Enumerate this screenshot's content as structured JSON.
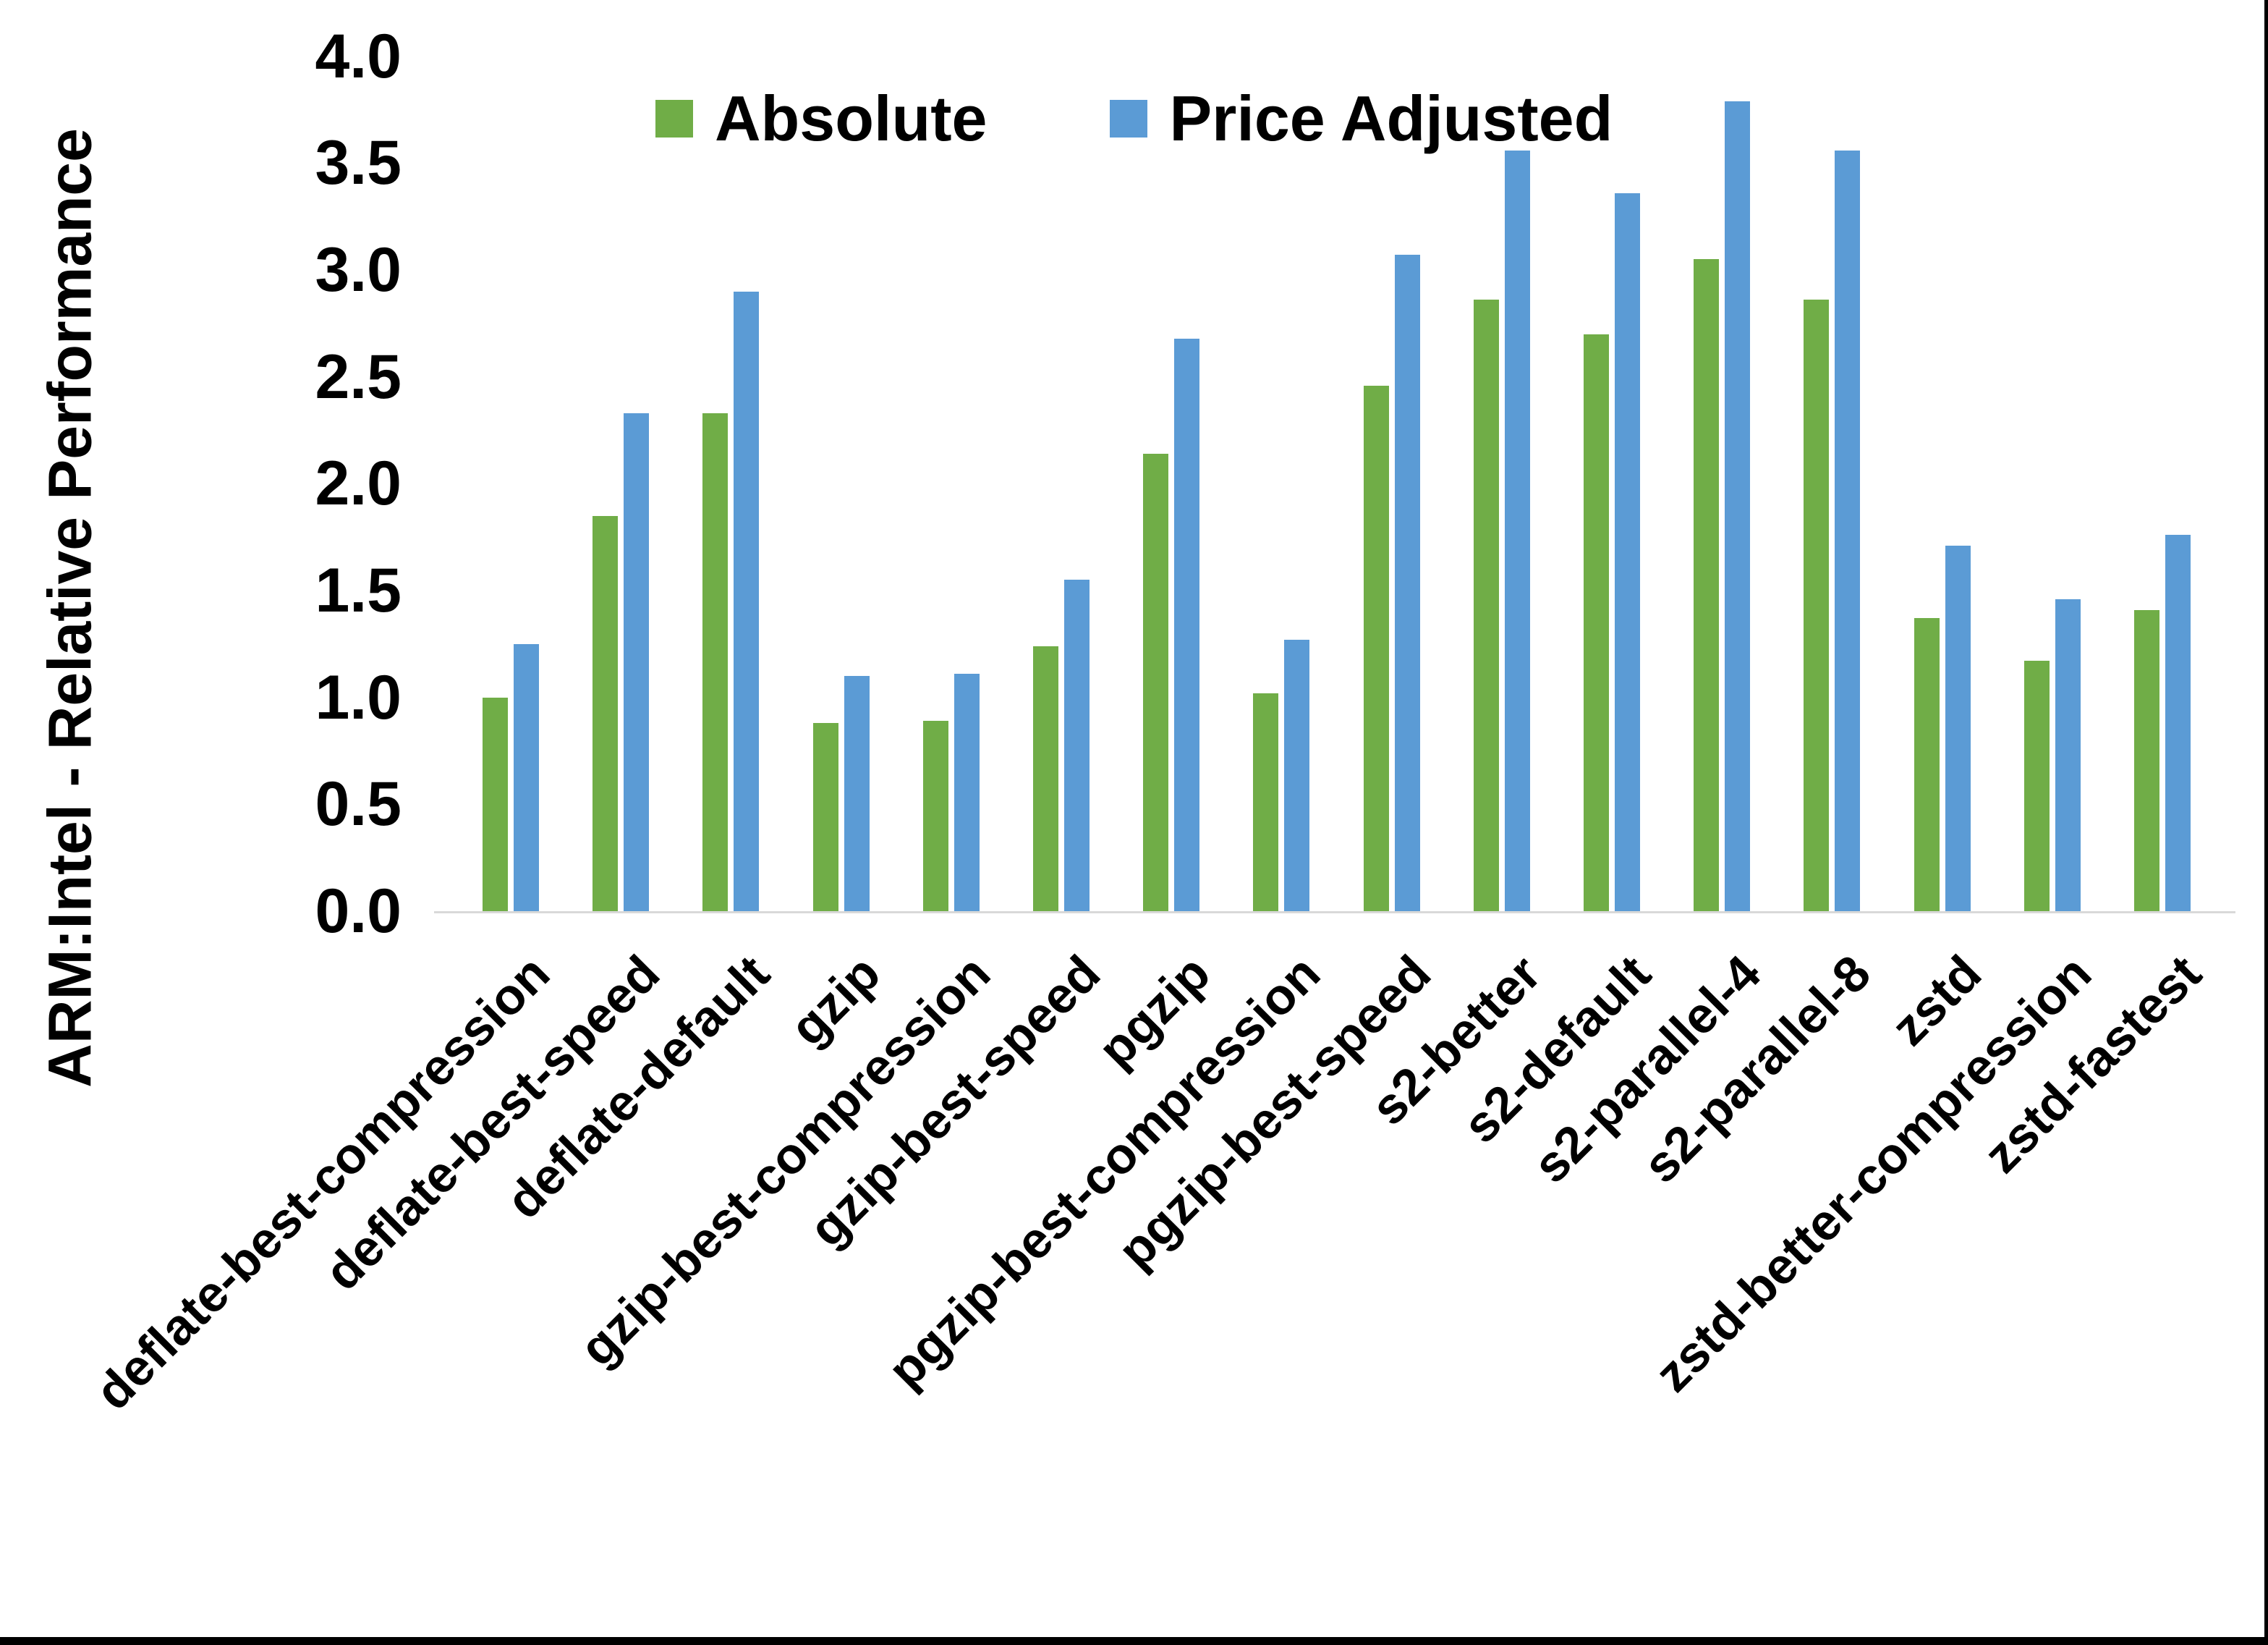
{
  "y_axis": {
    "title": "ARM:Intel - Relative Performance",
    "tick_labels": [
      "0.0",
      "0.5",
      "1.0",
      "1.5",
      "2.0",
      "2.5",
      "3.0",
      "3.5",
      "4.0"
    ],
    "axis_line_color": "#d9d9d9"
  },
  "legend": {
    "items": [
      {
        "label": "Absolute",
        "color": "#70AD47"
      },
      {
        "label": "Price Adjusted",
        "color": "#5B9BD5"
      }
    ]
  },
  "chart_data": {
    "type": "bar",
    "title": "",
    "xlabel": "",
    "ylabel": "ARM:Intel - Relative Performance",
    "ylim": [
      0.0,
      4.0
    ],
    "ytick_step": 0.5,
    "grid": false,
    "legend_position": "top-center",
    "categories": [
      "deflate-best-compression",
      "deflate-best-speed",
      "deflate-default",
      "gzip",
      "gzip-best-compression",
      "gzip-best-speed",
      "pgzip",
      "pgzip-best-compression",
      "pgzip-best-speed",
      "s2-better",
      "s2-default",
      "s2-parallel-4",
      "s2-parallel-8",
      "zstd",
      "zstd-better-compression",
      "zstd-fastest"
    ],
    "series": [
      {
        "name": "Absolute",
        "color": "#70AD47",
        "values": [
          1.0,
          1.85,
          2.33,
          0.88,
          0.89,
          1.24,
          2.14,
          1.02,
          2.46,
          2.86,
          2.7,
          3.05,
          2.86,
          1.37,
          1.17,
          1.41
        ]
      },
      {
        "name": "Price Adjusted",
        "color": "#5B9BD5",
        "values": [
          1.25,
          2.33,
          2.9,
          1.1,
          1.11,
          1.55,
          2.68,
          1.27,
          3.07,
          3.56,
          3.36,
          3.79,
          3.56,
          1.71,
          1.46,
          1.76
        ]
      }
    ]
  }
}
